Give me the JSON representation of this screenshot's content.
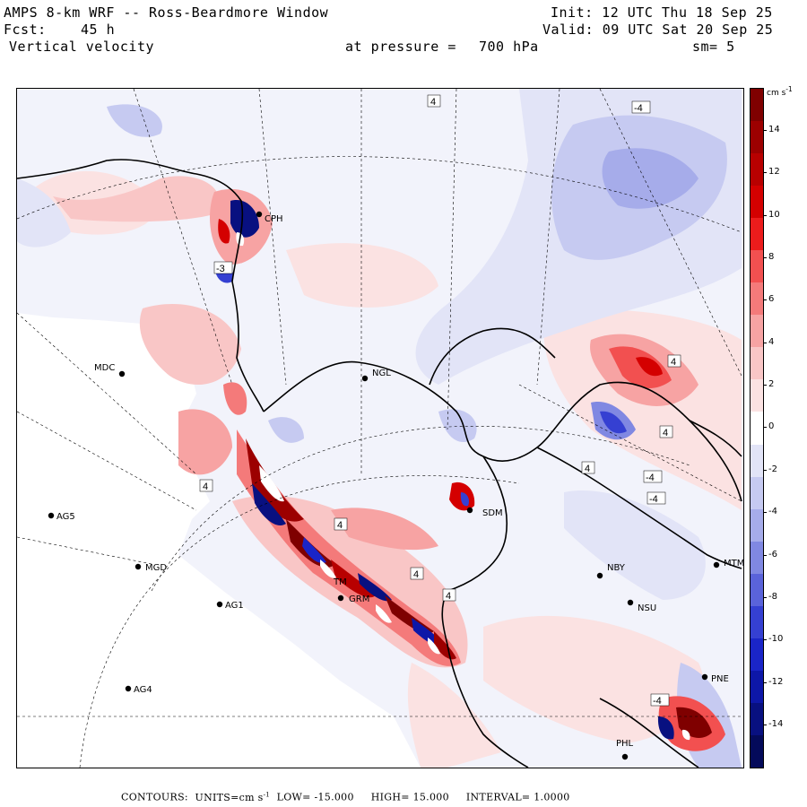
{
  "header": {
    "title": "AMPS 8-km WRF -- Ross-Beardmore Window",
    "init": "Init: 12 UTC Thu 18 Sep 25",
    "fcst_label": "Fcst:",
    "fcst_value": "45 h",
    "valid": "Valid: 09 UTC Sat 20 Sep 25",
    "field": "Vertical velocity",
    "pressure_label": "at pressure =",
    "pressure_value": "700 hPa",
    "smoothing": "sm= 5"
  },
  "colorbar": {
    "unit": "cm s",
    "unit_exp": "-1",
    "ticks": [
      "14",
      "12",
      "10",
      "8",
      "6",
      "4",
      "2",
      "0",
      "-2",
      "-4",
      "-6",
      "-8",
      "-10",
      "-12",
      "-14"
    ],
    "colors": [
      "#7f0000",
      "#9c0000",
      "#b80000",
      "#d40000",
      "#ec1c1c",
      "#f25050",
      "#f47a7a",
      "#f7a3a3",
      "#f9c6c6",
      "#fbe2e2",
      "#ffffff",
      "#e2e4f7",
      "#c6caf1",
      "#a6acea",
      "#8088e2",
      "#5a63da",
      "#3540d2",
      "#1a25c8",
      "#0d17a8",
      "#081080",
      "#040a5a"
    ]
  },
  "stations": [
    {
      "code": "CPH"
    },
    {
      "code": "MDC"
    },
    {
      "code": "NGL"
    },
    {
      "code": "AG5"
    },
    {
      "code": "MGD"
    },
    {
      "code": "AG1"
    },
    {
      "code": "AG4"
    },
    {
      "code": "GRM"
    },
    {
      "code": "TM"
    },
    {
      "code": "SDM"
    },
    {
      "code": "NBY"
    },
    {
      "code": "MTM"
    },
    {
      "code": "NSU"
    },
    {
      "code": "PHL"
    },
    {
      "code": "PNE"
    }
  ],
  "contour_labels": [
    "4",
    "-4",
    "4",
    "-4",
    "4",
    "-4",
    "4",
    "-4",
    "4",
    "4",
    "4",
    "4",
    "-3"
  ],
  "footer": {
    "contours": "CONTOURS:",
    "units": "UNITS=cm s",
    "units_exp": "-1",
    "low": "LOW= -15.000",
    "high": "HIGH= 15.000",
    "interval": "INTERVAL= 1.0000"
  }
}
